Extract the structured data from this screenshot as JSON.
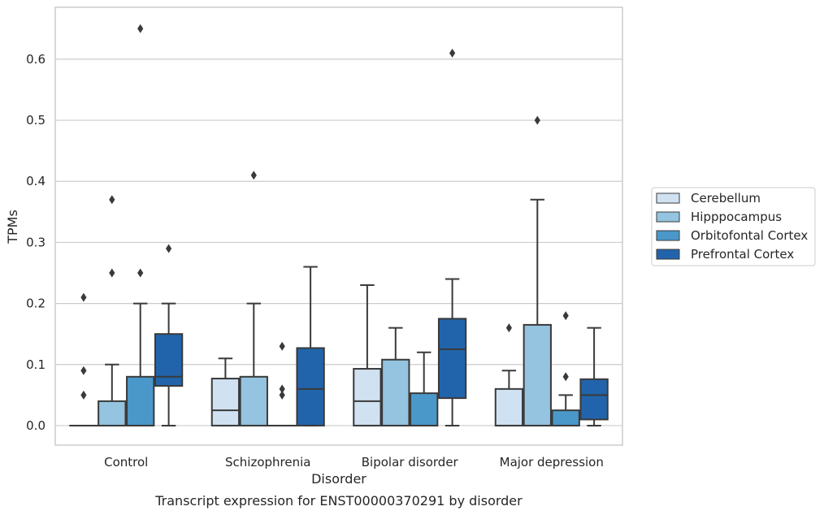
{
  "chart_data": {
    "type": "boxplot",
    "title": "",
    "caption": "Transcript expression for ENST00000370291 by disorder",
    "xlabel": "Disorder",
    "ylabel": "TPMs",
    "ylim": [
      -0.032,
      0.685
    ],
    "yticks": [
      0.0,
      0.1,
      0.2,
      0.3,
      0.4,
      0.5,
      0.6
    ],
    "ytick_labels": [
      "0.0",
      "0.1",
      "0.2",
      "0.3",
      "0.4",
      "0.5",
      "0.6"
    ],
    "grid": "horizontal",
    "legend_position": "right",
    "categories": [
      "Control",
      "Schizophrenia",
      "Bipolar disorder",
      "Major depression"
    ],
    "series": [
      {
        "name": "Cerebellum",
        "color": "#d0e1f2",
        "boxes": [
          {
            "q1": 0.0,
            "median": 0.0,
            "q3": 0.0,
            "whisker_low": 0.0,
            "whisker_high": 0.0,
            "outliers": [
              0.05,
              0.09,
              0.21
            ]
          },
          {
            "q1": 0.0,
            "median": 0.025,
            "q3": 0.077,
            "whisker_low": 0.0,
            "whisker_high": 0.11,
            "outliers": []
          },
          {
            "q1": 0.0,
            "median": 0.04,
            "q3": 0.093,
            "whisker_low": 0.0,
            "whisker_high": 0.23,
            "outliers": []
          },
          {
            "q1": 0.0,
            "median": 0.0,
            "q3": 0.06,
            "whisker_low": 0.0,
            "whisker_high": 0.09,
            "outliers": [
              0.16
            ]
          }
        ]
      },
      {
        "name": "Hipppocampus",
        "color": "#94c4df",
        "boxes": [
          {
            "q1": 0.0,
            "median": 0.0,
            "q3": 0.04,
            "whisker_low": 0.0,
            "whisker_high": 0.1,
            "outliers": [
              0.25,
              0.37
            ]
          },
          {
            "q1": 0.0,
            "median": 0.0,
            "q3": 0.08,
            "whisker_low": 0.0,
            "whisker_high": 0.2,
            "outliers": [
              0.41
            ]
          },
          {
            "q1": 0.0,
            "median": 0.0,
            "q3": 0.108,
            "whisker_low": 0.0,
            "whisker_high": 0.16,
            "outliers": []
          },
          {
            "q1": 0.0,
            "median": 0.0,
            "q3": 0.165,
            "whisker_low": 0.0,
            "whisker_high": 0.37,
            "outliers": [
              0.5
            ]
          }
        ]
      },
      {
        "name": "Orbitofontal Cortex",
        "color": "#4a98c9",
        "boxes": [
          {
            "q1": 0.0,
            "median": 0.0,
            "q3": 0.08,
            "whisker_low": 0.0,
            "whisker_high": 0.2,
            "outliers": [
              0.25,
              0.65
            ]
          },
          {
            "q1": 0.0,
            "median": 0.0,
            "q3": 0.0,
            "whisker_low": 0.0,
            "whisker_high": 0.0,
            "outliers": [
              0.05,
              0.06,
              0.13
            ]
          },
          {
            "q1": 0.0,
            "median": 0.0,
            "q3": 0.053,
            "whisker_low": 0.0,
            "whisker_high": 0.12,
            "outliers": []
          },
          {
            "q1": 0.0,
            "median": 0.0,
            "q3": 0.025,
            "whisker_low": 0.0,
            "whisker_high": 0.05,
            "outliers": [
              0.08,
              0.18
            ]
          }
        ]
      },
      {
        "name": "Prefrontal Cortex",
        "color": "#2164ab",
        "boxes": [
          {
            "q1": 0.065,
            "median": 0.08,
            "q3": 0.15,
            "whisker_low": 0.0,
            "whisker_high": 0.2,
            "outliers": [
              0.29
            ]
          },
          {
            "q1": 0.0,
            "median": 0.06,
            "q3": 0.127,
            "whisker_low": 0.0,
            "whisker_high": 0.26,
            "outliers": []
          },
          {
            "q1": 0.045,
            "median": 0.125,
            "q3": 0.175,
            "whisker_low": 0.0,
            "whisker_high": 0.24,
            "outliers": [
              0.61
            ]
          },
          {
            "q1": 0.01,
            "median": 0.05,
            "q3": 0.076,
            "whisker_low": 0.0,
            "whisker_high": 0.16,
            "outliers": []
          }
        ]
      }
    ]
  }
}
